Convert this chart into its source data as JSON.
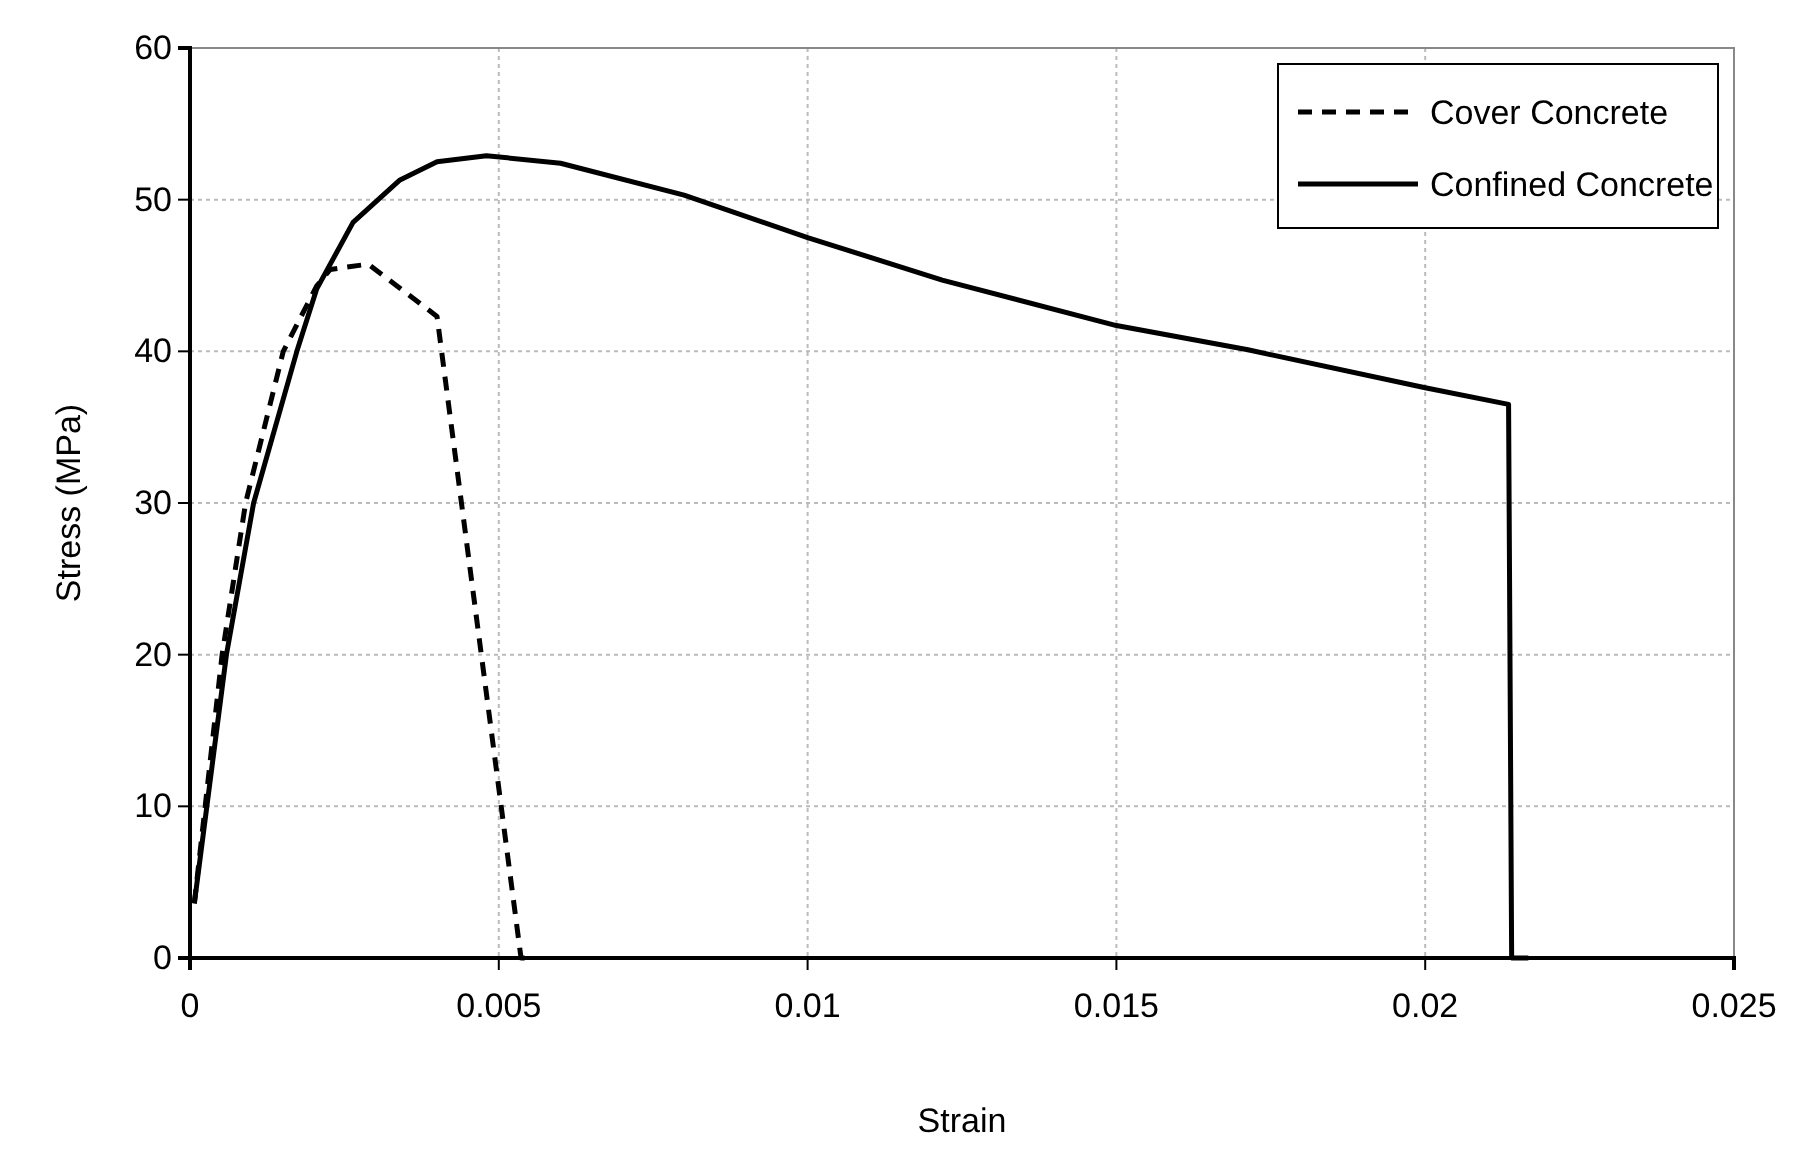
{
  "chart_data": {
    "type": "line",
    "xlabel": "Strain",
    "ylabel": "Stress (MPa)",
    "xlim": [
      0,
      0.025
    ],
    "ylim": [
      0,
      60
    ],
    "xticks": [
      0,
      0.005,
      0.01,
      0.015,
      0.02,
      0.025
    ],
    "yticks": [
      0,
      10,
      20,
      30,
      40,
      50,
      60
    ],
    "grid": true,
    "legend": "top right",
    "marker": "none",
    "series": [
      {
        "name": "Cover Concrete",
        "color": "#000000",
        "line_style": "dashed",
        "x": [
          7e-05,
          0.00052,
          0.0009,
          0.00151,
          0.00205,
          0.00227,
          0.0028,
          0.0029,
          0.004,
          0.00536,
          0.0055
        ],
        "values": [
          3.6,
          20,
          30,
          40,
          44.3,
          45.4,
          45.7,
          45.7,
          42.3,
          0,
          0
        ]
      },
      {
        "name": "Confined Concrete",
        "color": "#000000",
        "line_style": "solid",
        "x": [
          7e-05,
          0.00059,
          0.00103,
          0.00173,
          0.00205,
          0.00264,
          0.0034,
          0.004,
          0.0048,
          0.006,
          0.008,
          0.01,
          0.01218,
          0.015,
          0.01713,
          0.02,
          0.02135,
          0.0214,
          0.02167
        ],
        "values": [
          3.6,
          20,
          30,
          40,
          44.1,
          48.5,
          51.3,
          52.5,
          52.9,
          52.4,
          50.3,
          47.5,
          44.7,
          41.7,
          40.1,
          37.6,
          36.5,
          0,
          0
        ]
      }
    ]
  }
}
